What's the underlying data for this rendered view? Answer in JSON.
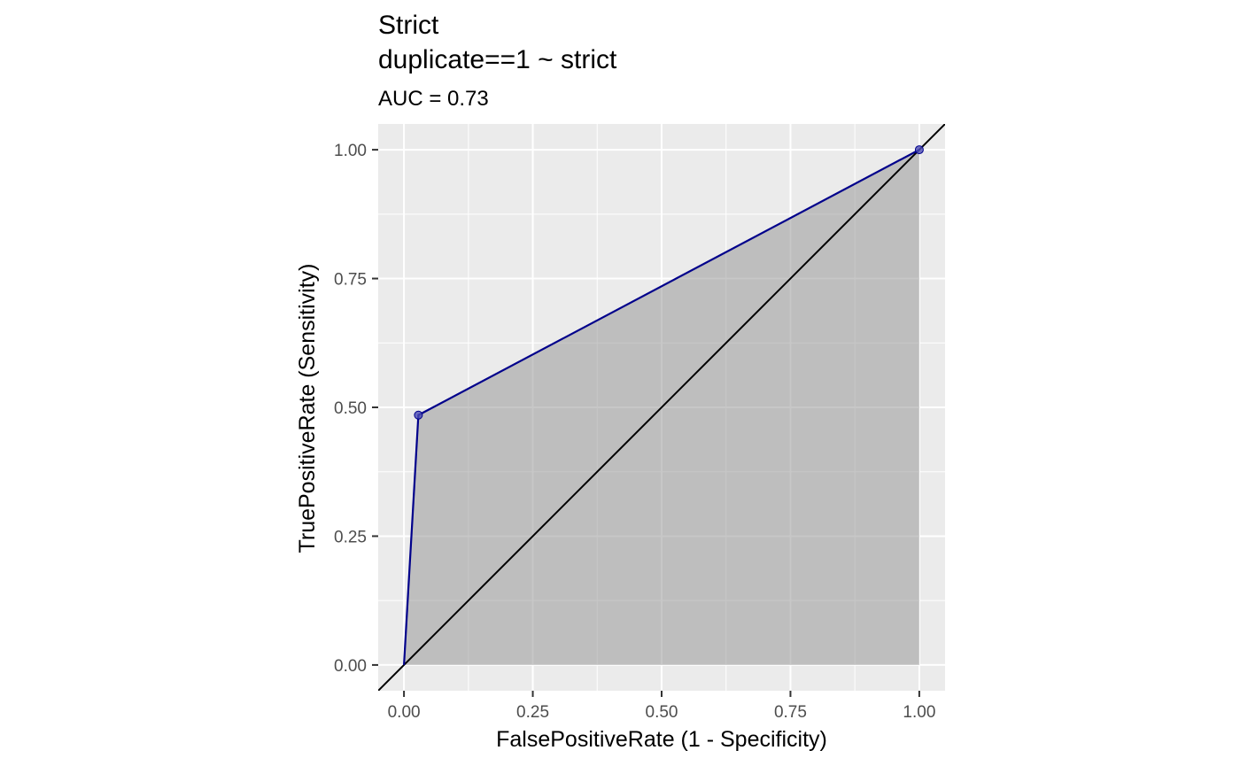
{
  "chart_data": {
    "type": "line",
    "title": "Strict",
    "title_line2": "duplicate==1 ~ strict",
    "subtitle": "AUC = 0.73",
    "xlabel": "FalsePositiveRate (1 - Specificity)",
    "ylabel": "TruePositiveRate (Sensitivity)",
    "xlim": [
      -0.05,
      1.05
    ],
    "ylim": [
      -0.05,
      1.05
    ],
    "x_ticks": [
      0,
      0.25,
      0.5,
      0.75,
      1
    ],
    "x_tick_labels": [
      "0.00",
      "0.25",
      "0.50",
      "0.75",
      "1.00"
    ],
    "y_ticks": [
      0,
      0.25,
      0.5,
      0.75,
      1
    ],
    "y_tick_labels": [
      "0.00",
      "0.25",
      "0.50",
      "0.75",
      "1.00"
    ],
    "grid": true,
    "series": [
      {
        "x": [
          0,
          0.028,
          1
        ],
        "y": [
          0,
          0.485,
          1
        ],
        "points_x": [
          0.028,
          1
        ],
        "points_y": [
          0.485,
          1
        ]
      }
    ],
    "reference_line": {
      "intercept": 0,
      "slope": 1
    },
    "colors": {
      "panel_background": "#EBEBEB",
      "grid": "#FFFFFF",
      "roc_line": "#00008B",
      "roc_points": "#4B4BB4",
      "area_fill": "#999999",
      "reference_line": "#000000"
    }
  }
}
